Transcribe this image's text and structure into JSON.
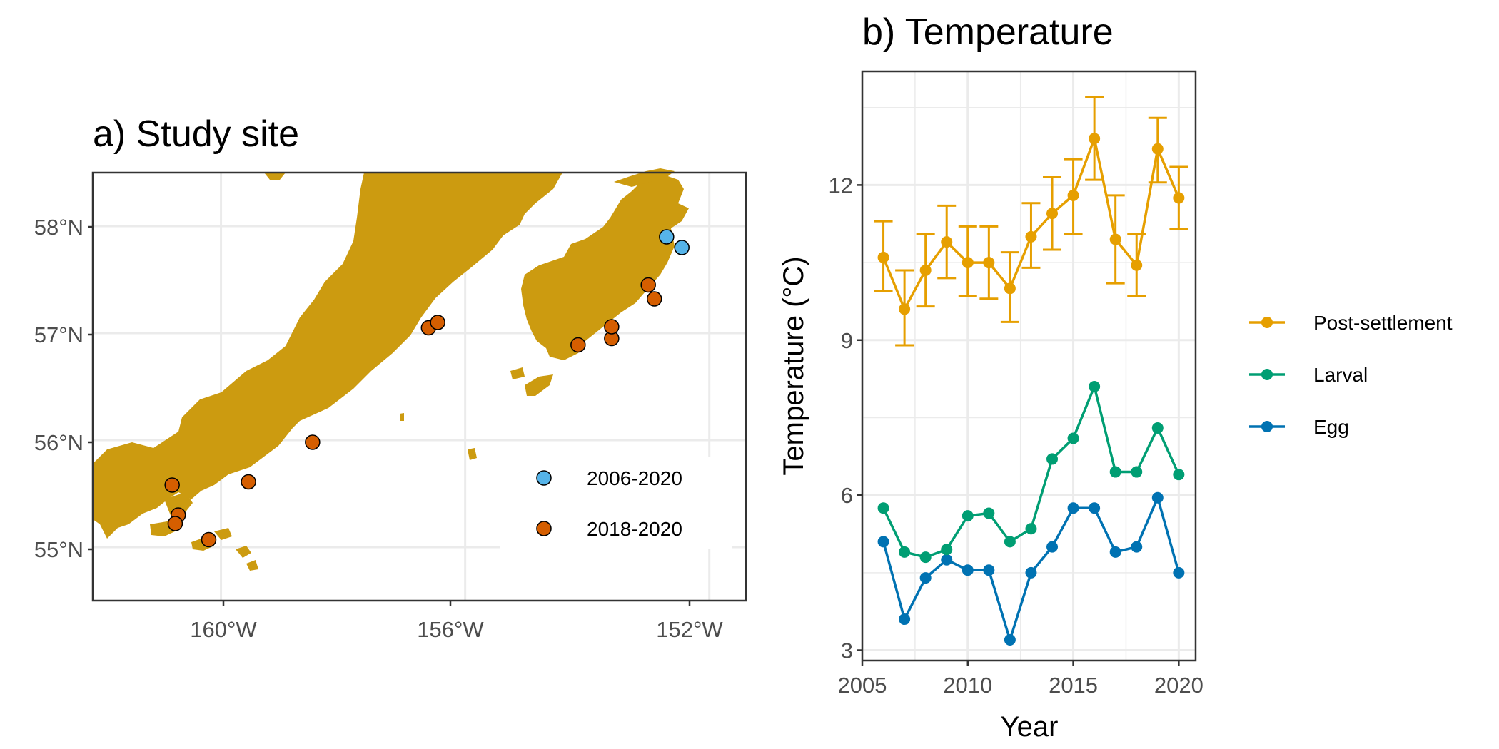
{
  "panel_a": {
    "title": "a) Study site",
    "y_ticks": [
      "58°N",
      "57°N",
      "56°N",
      "55°N"
    ],
    "x_ticks": [
      "160°W",
      "156°W",
      "152°W"
    ],
    "land_color": "#CC9B10",
    "legend": [
      {
        "label": "2006-2020",
        "color": "#56B4E9"
      },
      {
        "label": "2018-2020",
        "color": "#D55E00"
      }
    ]
  },
  "chart_data": [
    {
      "type": "scatter",
      "title": "a) Study site",
      "xlabel": "",
      "ylabel": "",
      "xlim": [
        -162.1,
        -151.4
      ],
      "ylim": [
        54.5,
        58.5
      ],
      "x_ticks": [
        -160,
        -156,
        -152
      ],
      "y_ticks": [
        55,
        56,
        57,
        58
      ],
      "grid": true,
      "legend_position": "bottom-right inside",
      "series": [
        {
          "name": "2006-2020",
          "color": "#56B4E9",
          "points": [
            [
              -152.7,
              57.9
            ],
            [
              -152.45,
              57.8
            ]
          ]
        },
        {
          "name": "2018-2020",
          "color": "#D55E00",
          "points": [
            [
              -160.8,
              55.58
            ],
            [
              -160.7,
              55.3
            ],
            [
              -160.75,
              55.22
            ],
            [
              -160.2,
              55.07
            ],
            [
              -159.55,
              55.61
            ],
            [
              -158.5,
              55.98
            ],
            [
              -156.6,
              57.05
            ],
            [
              -156.45,
              57.1
            ],
            [
              -154.15,
              56.89
            ],
            [
              -153.6,
              56.95
            ],
            [
              -153.6,
              57.06
            ],
            [
              -153.0,
              57.45
            ],
            [
              -152.9,
              57.32
            ]
          ]
        }
      ]
    },
    {
      "type": "line",
      "title": "b) Temperature",
      "xlabel": "Year",
      "ylabel": "Temperature (°C)",
      "xlim": [
        2005,
        2020.8
      ],
      "ylim": [
        2.8,
        14.2
      ],
      "x_ticks": [
        2005,
        2010,
        2015,
        2020
      ],
      "y_ticks": [
        3,
        6,
        9,
        12
      ],
      "grid": true,
      "legend_position": "right",
      "x": [
        2006,
        2007,
        2008,
        2009,
        2010,
        2011,
        2012,
        2013,
        2014,
        2015,
        2016,
        2017,
        2018,
        2019,
        2020
      ],
      "series": [
        {
          "name": "Post-settlement",
          "color": "#E69F00",
          "values": [
            10.6,
            9.6,
            10.35,
            10.9,
            10.5,
            10.5,
            10.0,
            11.0,
            11.45,
            11.8,
            12.9,
            10.95,
            10.45,
            12.7,
            11.75
          ],
          "error_low": [
            9.95,
            8.9,
            9.65,
            10.2,
            9.85,
            9.8,
            9.35,
            10.4,
            10.75,
            11.05,
            12.1,
            10.1,
            9.85,
            12.05,
            11.15
          ],
          "error_high": [
            11.3,
            10.35,
            11.05,
            11.6,
            11.2,
            11.2,
            10.7,
            11.65,
            12.15,
            12.5,
            13.7,
            11.8,
            11.05,
            13.3,
            12.35
          ]
        },
        {
          "name": "Larval",
          "color": "#009E73",
          "values": [
            5.75,
            4.9,
            4.8,
            4.95,
            5.6,
            5.65,
            5.1,
            5.35,
            6.7,
            7.1,
            8.1,
            6.45,
            6.45,
            7.3,
            6.4
          ]
        },
        {
          "name": "Egg",
          "color": "#0072B2",
          "values": [
            5.1,
            3.6,
            4.4,
            4.75,
            4.55,
            4.55,
            3.2,
            4.5,
            5.0,
            5.75,
            5.75,
            4.9,
            5.0,
            5.95,
            4.5
          ]
        }
      ]
    }
  ]
}
